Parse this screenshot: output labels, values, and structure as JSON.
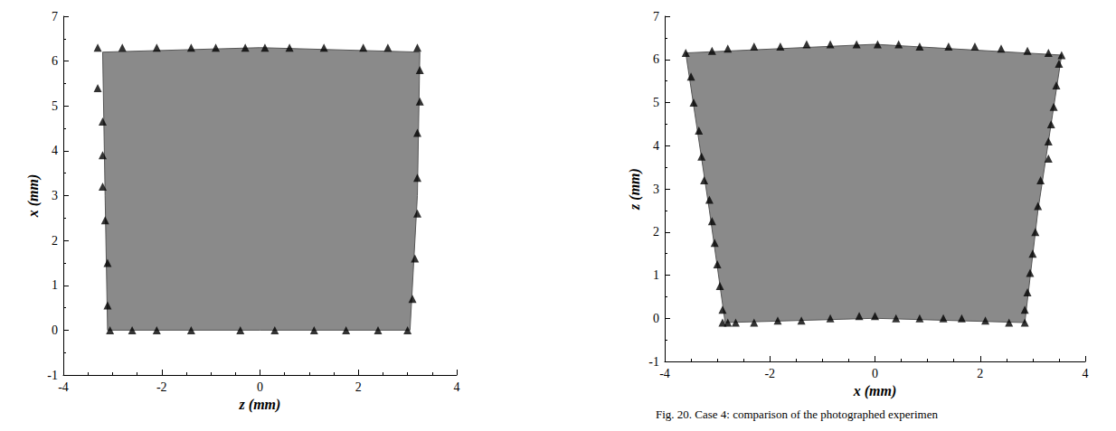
{
  "chart_data": [
    {
      "type": "scatter",
      "x_label": "z (mm)",
      "y_label": "x (mm)",
      "xlim": [
        -4,
        4
      ],
      "xticks": [
        -4,
        -2,
        0,
        2,
        4
      ],
      "ylim": [
        -1,
        7
      ],
      "yticks": [
        -1,
        0,
        1,
        2,
        3,
        4,
        5,
        6,
        7
      ],
      "grid": false,
      "series": [
        {
          "type": "polygon",
          "color": "#8a8a8a",
          "x": [
            -3.1,
            0,
            3.05,
            3.2,
            3.25,
            0,
            -3.2,
            -3.15
          ],
          "y": [
            0,
            0,
            0,
            3,
            6.2,
            6.3,
            6.2,
            3
          ]
        },
        {
          "type": "scatter",
          "marker": "triangle",
          "color": "#000000",
          "x": [
            -3.3,
            -2.8,
            -2.1,
            -1.4,
            -0.9,
            -0.3,
            0.1,
            0.6,
            1.3,
            2.1,
            2.6,
            3.2,
            3.25,
            3.25,
            3.2,
            3.2,
            3.2,
            3.15,
            3.1,
            3.0,
            2.4,
            1.75,
            1.1,
            0.3,
            -0.4,
            -1.4,
            -2.1,
            -2.6,
            -3.05,
            -3.1,
            -3.1,
            -3.15,
            -3.2,
            -3.2,
            -3.2,
            -3.3
          ],
          "y": [
            6.3,
            6.3,
            6.3,
            6.3,
            6.3,
            6.3,
            6.3,
            6.3,
            6.3,
            6.3,
            6.3,
            6.3,
            5.8,
            5.1,
            4.4,
            3.4,
            2.6,
            1.6,
            0.7,
            0.0,
            0,
            0,
            0,
            0,
            0,
            0,
            0,
            0,
            0,
            0.55,
            1.5,
            2.45,
            3.2,
            3.9,
            4.65,
            5.4
          ]
        }
      ]
    },
    {
      "type": "scatter",
      "x_label": "x (mm)",
      "y_label": "z (mm)",
      "annotations": [
        "Fig. 20. Case 4: comparison of the photographed experimen"
      ],
      "xlim": [
        -4,
        4
      ],
      "xticks": [
        -4,
        -2,
        0,
        2,
        4
      ],
      "ylim": [
        -1,
        7
      ],
      "yticks": [
        -1,
        0,
        1,
        2,
        3,
        4,
        5,
        6,
        7
      ],
      "grid": false,
      "series": [
        {
          "type": "polygon",
          "color": "#8a8a8a",
          "x": [
            -2.85,
            0,
            2.85,
            3.1,
            3.55,
            0,
            -3.6,
            -3.15
          ],
          "y": [
            -0.1,
            0.0,
            -0.1,
            2.5,
            6.1,
            6.35,
            6.15,
            2.5
          ]
        },
        {
          "type": "scatter",
          "marker": "triangle",
          "color": "#000000",
          "x": [
            -3.6,
            -3.1,
            -2.8,
            -2.3,
            -1.8,
            -1.3,
            -0.85,
            -0.35,
            0.05,
            0.45,
            0.85,
            1.4,
            1.9,
            2.4,
            2.9,
            3.3,
            3.55,
            3.5,
            3.45,
            3.4,
            3.35,
            3.3,
            3.3,
            3.15,
            3.1,
            3.05,
            3.0,
            2.95,
            2.9,
            2.85,
            2.85,
            2.55,
            2.1,
            1.65,
            1.3,
            0.85,
            0.4,
            0.0,
            -0.3,
            -0.85,
            -1.4,
            -1.85,
            -2.3,
            -2.65,
            -2.8,
            -2.9,
            -2.9,
            -2.95,
            -3.0,
            -3.05,
            -3.1,
            -3.15,
            -3.25,
            -3.3,
            -3.35,
            -3.45,
            -3.5
          ],
          "y": [
            6.15,
            6.2,
            6.25,
            6.3,
            6.3,
            6.35,
            6.35,
            6.35,
            6.35,
            6.35,
            6.3,
            6.3,
            6.3,
            6.25,
            6.2,
            6.15,
            6.1,
            5.9,
            5.4,
            4.9,
            4.5,
            4.1,
            3.7,
            3.2,
            2.6,
            2.0,
            1.5,
            1.05,
            0.6,
            0.2,
            -0.1,
            -0.1,
            -0.05,
            0.0,
            0.0,
            0.0,
            0.0,
            0.05,
            0.05,
            0.0,
            -0.05,
            -0.05,
            -0.1,
            -0.1,
            -0.1,
            -0.1,
            0.2,
            0.75,
            1.25,
            1.75,
            2.25,
            2.75,
            3.2,
            3.75,
            4.35,
            5.0,
            5.6
          ]
        }
      ]
    }
  ]
}
